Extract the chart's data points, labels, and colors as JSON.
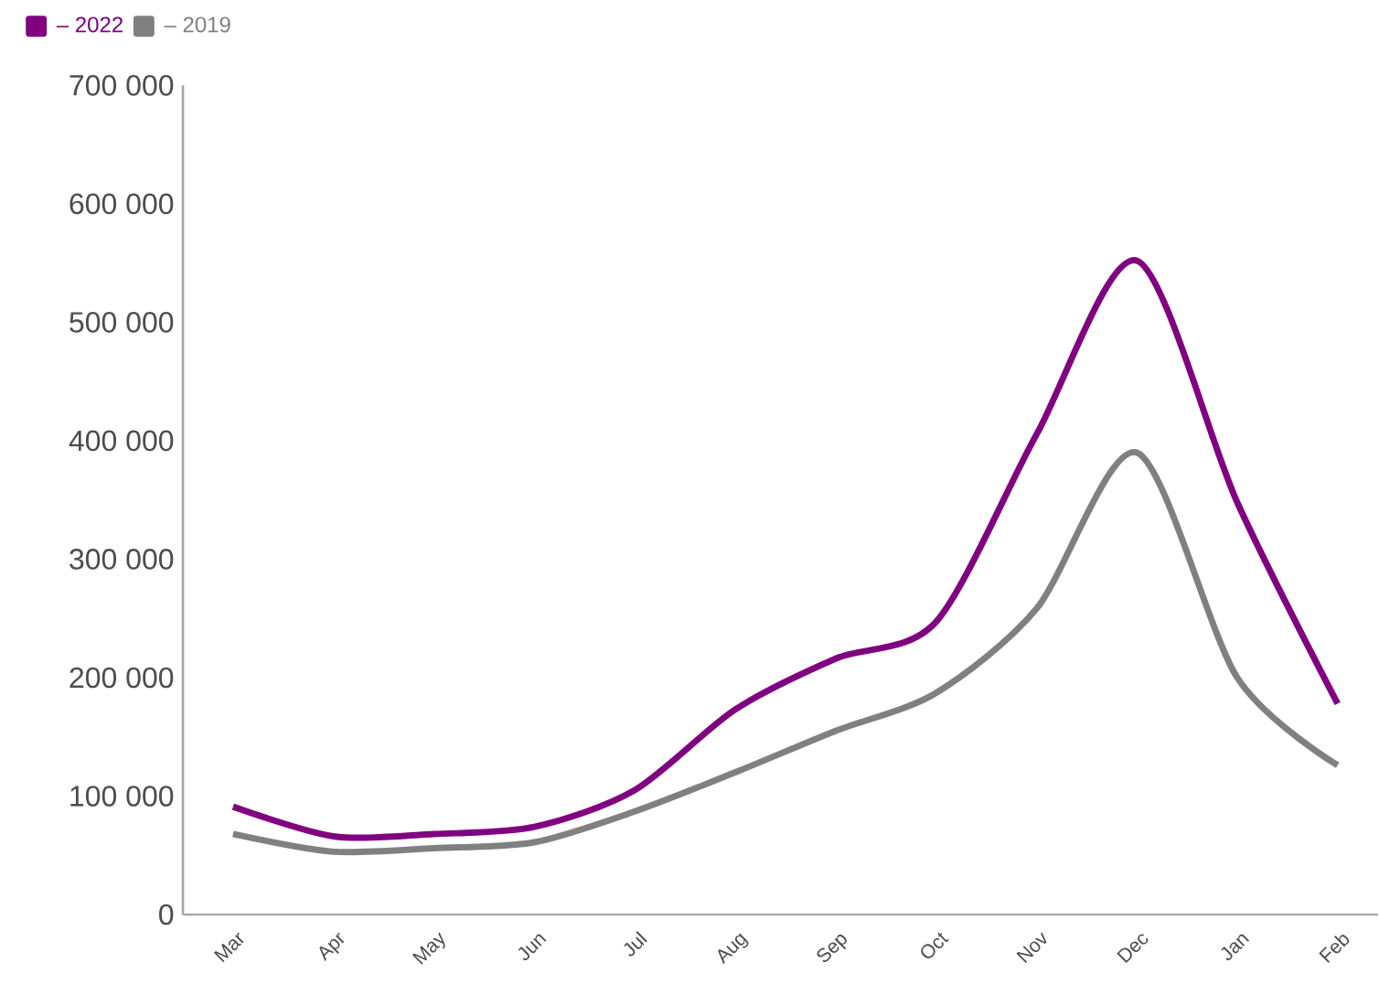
{
  "chart_data": {
    "type": "line",
    "categories": [
      "Mar",
      "Apr",
      "May",
      "Jun",
      "Jul",
      "Aug",
      "Sep",
      "Oct",
      "Nov",
      "Dec",
      "Jan",
      "Feb"
    ],
    "series": [
      {
        "name": "– 2022",
        "color": "#800080",
        "values": [
          91000,
          66000,
          68000,
          74000,
          105000,
          173000,
          216000,
          247000,
          405000,
          552000,
          348000,
          178000
        ]
      },
      {
        "name": "– 2019",
        "color": "#808080",
        "values": [
          68000,
          53000,
          56000,
          61000,
          87000,
          120000,
          155000,
          187000,
          258000,
          390000,
          200000,
          126000
        ]
      }
    ],
    "ylim": [
      0,
      700000
    ],
    "yticks": [
      0,
      {
        "value": 100000,
        "label": "100 000"
      },
      {
        "value": 200000,
        "label": "200 000"
      },
      {
        "value": 300000,
        "label": "300 000"
      },
      {
        "value": 400000,
        "label": "400 000"
      },
      {
        "value": 500000,
        "label": "500 000"
      },
      {
        "value": 600000,
        "label": "600 000"
      },
      {
        "value": 700000,
        "label": "700 000"
      }
    ],
    "grid": false,
    "legend": "top left"
  }
}
